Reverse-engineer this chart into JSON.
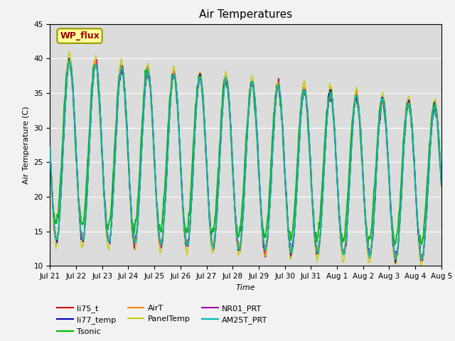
{
  "title": "Air Temperatures",
  "xlabel": "Time",
  "ylabel": "Air Temperature (C)",
  "ylim": [
    10,
    45
  ],
  "n_days": 15,
  "annotation_text": "WP_flux",
  "annotation_facecolor": "#FFFF99",
  "annotation_edgecolor": "#999900",
  "annotation_textcolor": "#990000",
  "plot_bg_color": "#DCDCDC",
  "fig_bg_color": "#F2F2F2",
  "yticks": [
    10,
    15,
    20,
    25,
    30,
    35,
    40,
    45
  ],
  "xtick_labels": [
    "Jul 21",
    "Jul 22",
    "Jul 23",
    "Jul 24",
    "Jul 25",
    "Jul 26",
    "Jul 27",
    "Jul 28",
    "Jul 29",
    "Jul 30",
    "Jul 31",
    "Aug 1",
    "Aug 2",
    "Aug 3",
    "Aug 4",
    "Aug 5"
  ],
  "series": [
    {
      "name": "li75_t",
      "color": "#CC0000",
      "lw": 1.0,
      "zorder": 4
    },
    {
      "name": "li77_temp",
      "color": "#0000BB",
      "lw": 1.0,
      "zorder": 5
    },
    {
      "name": "Tsonic",
      "color": "#00BB00",
      "lw": 1.3,
      "zorder": 3
    },
    {
      "name": "AirT",
      "color": "#FF8800",
      "lw": 1.0,
      "zorder": 6
    },
    {
      "name": "PanelTemp",
      "color": "#CCCC00",
      "lw": 1.0,
      "zorder": 2
    },
    {
      "name": "NR01_PRT",
      "color": "#9900AA",
      "lw": 1.0,
      "zorder": 4
    },
    {
      "name": "AM25T_PRT",
      "color": "#00BBBB",
      "lw": 1.3,
      "zorder": 7
    }
  ],
  "legend_ncol": 3,
  "legend_fontsize": 8,
  "title_fontsize": 11,
  "axis_label_fontsize": 8
}
